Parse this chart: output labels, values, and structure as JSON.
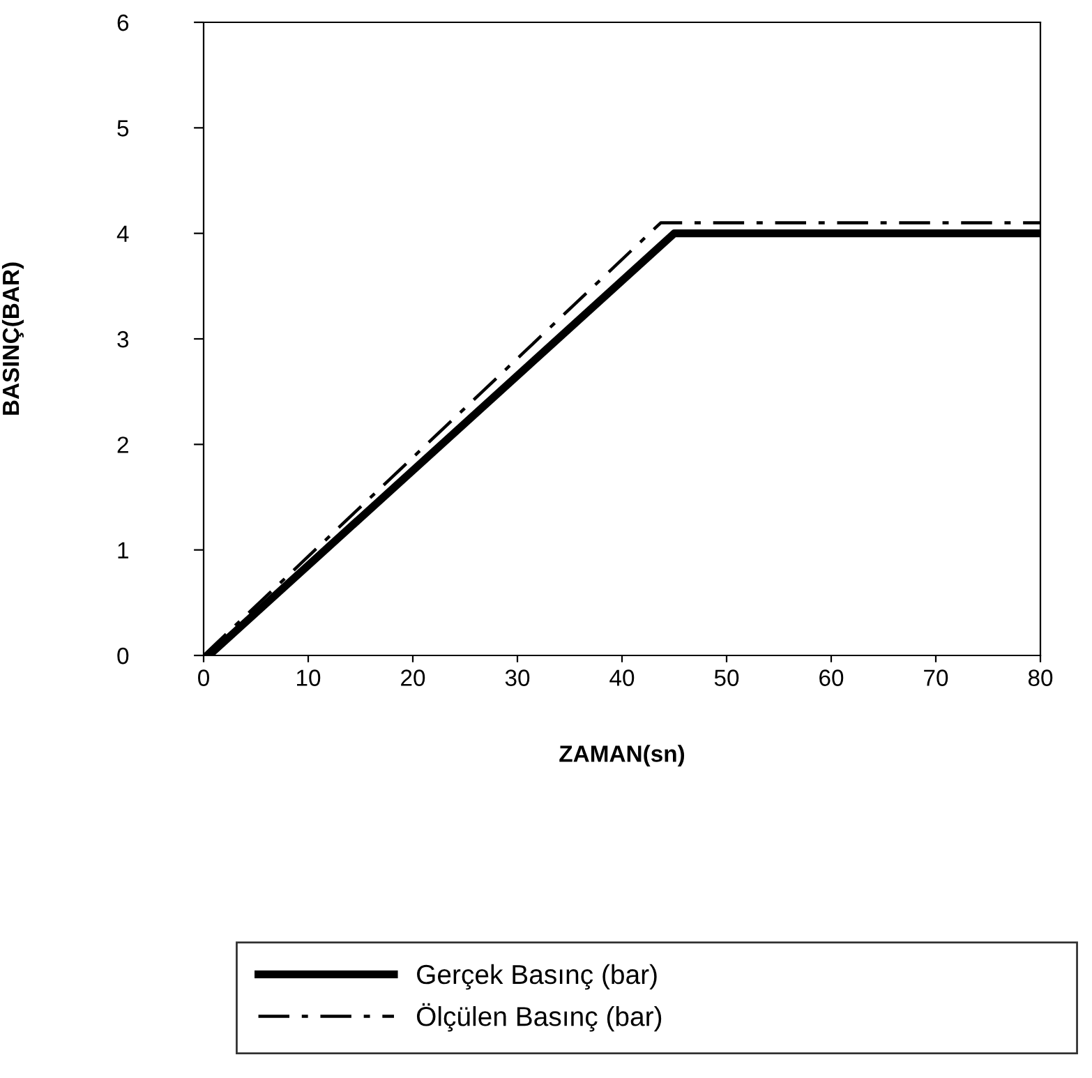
{
  "chart_data": {
    "type": "line",
    "xlabel": "ZAMAN(sn)",
    "ylabel": "BASINÇ(BAR)",
    "xlim": [
      0,
      80
    ],
    "ylim": [
      0,
      6
    ],
    "xticks": [
      0,
      10,
      20,
      30,
      40,
      50,
      60,
      70,
      80
    ],
    "yticks": [
      0,
      1,
      2,
      3,
      4,
      5,
      6
    ],
    "grid": false,
    "legend": "bottom",
    "marker": "none",
    "series": [
      {
        "name": "Gerçek Basınç (bar)",
        "color": "#000000",
        "line_style": "solid",
        "x": [
          0.5,
          45,
          80
        ],
        "values": [
          0,
          4,
          4
        ]
      },
      {
        "name": "Ölçülen Basınç (bar)",
        "color": "#000000",
        "line_style": "dashdot",
        "x": [
          0,
          43.7,
          80
        ],
        "values": [
          0,
          4.1,
          4.1
        ]
      }
    ]
  }
}
